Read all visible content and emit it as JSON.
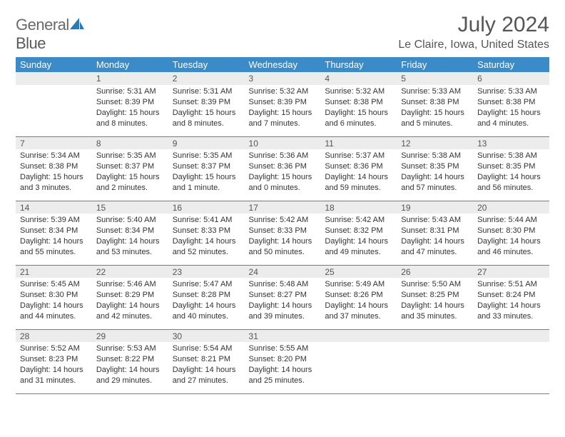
{
  "brand": {
    "text1": "General",
    "text2": "Blue"
  },
  "title": "July 2024",
  "location": "Le Claire, Iowa, United States",
  "colors": {
    "header_bg": "#3b8bc8",
    "header_text": "#ffffff",
    "daynum_bg": "#ececec",
    "border": "#3b8bc8",
    "text": "#333333",
    "title_text": "#555555"
  },
  "fonts": {
    "title_size": 30,
    "location_size": 16,
    "dayhdr_size": 13,
    "daynum_size": 12,
    "cell_size": 11
  },
  "day_headers": [
    "Sunday",
    "Monday",
    "Tuesday",
    "Wednesday",
    "Thursday",
    "Friday",
    "Saturday"
  ],
  "weeks": [
    {
      "nums": [
        "",
        "1",
        "2",
        "3",
        "4",
        "5",
        "6"
      ],
      "cells": [
        {
          "sunrise": "",
          "sunset": "",
          "daylight": ""
        },
        {
          "sunrise": "Sunrise: 5:31 AM",
          "sunset": "Sunset: 8:39 PM",
          "daylight": "Daylight: 15 hours and 8 minutes."
        },
        {
          "sunrise": "Sunrise: 5:31 AM",
          "sunset": "Sunset: 8:39 PM",
          "daylight": "Daylight: 15 hours and 8 minutes."
        },
        {
          "sunrise": "Sunrise: 5:32 AM",
          "sunset": "Sunset: 8:39 PM",
          "daylight": "Daylight: 15 hours and 7 minutes."
        },
        {
          "sunrise": "Sunrise: 5:32 AM",
          "sunset": "Sunset: 8:38 PM",
          "daylight": "Daylight: 15 hours and 6 minutes."
        },
        {
          "sunrise": "Sunrise: 5:33 AM",
          "sunset": "Sunset: 8:38 PM",
          "daylight": "Daylight: 15 hours and 5 minutes."
        },
        {
          "sunrise": "Sunrise: 5:33 AM",
          "sunset": "Sunset: 8:38 PM",
          "daylight": "Daylight: 15 hours and 4 minutes."
        }
      ]
    },
    {
      "nums": [
        "7",
        "8",
        "9",
        "10",
        "11",
        "12",
        "13"
      ],
      "cells": [
        {
          "sunrise": "Sunrise: 5:34 AM",
          "sunset": "Sunset: 8:38 PM",
          "daylight": "Daylight: 15 hours and 3 minutes."
        },
        {
          "sunrise": "Sunrise: 5:35 AM",
          "sunset": "Sunset: 8:37 PM",
          "daylight": "Daylight: 15 hours and 2 minutes."
        },
        {
          "sunrise": "Sunrise: 5:35 AM",
          "sunset": "Sunset: 8:37 PM",
          "daylight": "Daylight: 15 hours and 1 minute."
        },
        {
          "sunrise": "Sunrise: 5:36 AM",
          "sunset": "Sunset: 8:36 PM",
          "daylight": "Daylight: 15 hours and 0 minutes."
        },
        {
          "sunrise": "Sunrise: 5:37 AM",
          "sunset": "Sunset: 8:36 PM",
          "daylight": "Daylight: 14 hours and 59 minutes."
        },
        {
          "sunrise": "Sunrise: 5:38 AM",
          "sunset": "Sunset: 8:35 PM",
          "daylight": "Daylight: 14 hours and 57 minutes."
        },
        {
          "sunrise": "Sunrise: 5:38 AM",
          "sunset": "Sunset: 8:35 PM",
          "daylight": "Daylight: 14 hours and 56 minutes."
        }
      ]
    },
    {
      "nums": [
        "14",
        "15",
        "16",
        "17",
        "18",
        "19",
        "20"
      ],
      "cells": [
        {
          "sunrise": "Sunrise: 5:39 AM",
          "sunset": "Sunset: 8:34 PM",
          "daylight": "Daylight: 14 hours and 55 minutes."
        },
        {
          "sunrise": "Sunrise: 5:40 AM",
          "sunset": "Sunset: 8:34 PM",
          "daylight": "Daylight: 14 hours and 53 minutes."
        },
        {
          "sunrise": "Sunrise: 5:41 AM",
          "sunset": "Sunset: 8:33 PM",
          "daylight": "Daylight: 14 hours and 52 minutes."
        },
        {
          "sunrise": "Sunrise: 5:42 AM",
          "sunset": "Sunset: 8:33 PM",
          "daylight": "Daylight: 14 hours and 50 minutes."
        },
        {
          "sunrise": "Sunrise: 5:42 AM",
          "sunset": "Sunset: 8:32 PM",
          "daylight": "Daylight: 14 hours and 49 minutes."
        },
        {
          "sunrise": "Sunrise: 5:43 AM",
          "sunset": "Sunset: 8:31 PM",
          "daylight": "Daylight: 14 hours and 47 minutes."
        },
        {
          "sunrise": "Sunrise: 5:44 AM",
          "sunset": "Sunset: 8:30 PM",
          "daylight": "Daylight: 14 hours and 46 minutes."
        }
      ]
    },
    {
      "nums": [
        "21",
        "22",
        "23",
        "24",
        "25",
        "26",
        "27"
      ],
      "cells": [
        {
          "sunrise": "Sunrise: 5:45 AM",
          "sunset": "Sunset: 8:30 PM",
          "daylight": "Daylight: 14 hours and 44 minutes."
        },
        {
          "sunrise": "Sunrise: 5:46 AM",
          "sunset": "Sunset: 8:29 PM",
          "daylight": "Daylight: 14 hours and 42 minutes."
        },
        {
          "sunrise": "Sunrise: 5:47 AM",
          "sunset": "Sunset: 8:28 PM",
          "daylight": "Daylight: 14 hours and 40 minutes."
        },
        {
          "sunrise": "Sunrise: 5:48 AM",
          "sunset": "Sunset: 8:27 PM",
          "daylight": "Daylight: 14 hours and 39 minutes."
        },
        {
          "sunrise": "Sunrise: 5:49 AM",
          "sunset": "Sunset: 8:26 PM",
          "daylight": "Daylight: 14 hours and 37 minutes."
        },
        {
          "sunrise": "Sunrise: 5:50 AM",
          "sunset": "Sunset: 8:25 PM",
          "daylight": "Daylight: 14 hours and 35 minutes."
        },
        {
          "sunrise": "Sunrise: 5:51 AM",
          "sunset": "Sunset: 8:24 PM",
          "daylight": "Daylight: 14 hours and 33 minutes."
        }
      ]
    },
    {
      "nums": [
        "28",
        "29",
        "30",
        "31",
        "",
        "",
        ""
      ],
      "cells": [
        {
          "sunrise": "Sunrise: 5:52 AM",
          "sunset": "Sunset: 8:23 PM",
          "daylight": "Daylight: 14 hours and 31 minutes."
        },
        {
          "sunrise": "Sunrise: 5:53 AM",
          "sunset": "Sunset: 8:22 PM",
          "daylight": "Daylight: 14 hours and 29 minutes."
        },
        {
          "sunrise": "Sunrise: 5:54 AM",
          "sunset": "Sunset: 8:21 PM",
          "daylight": "Daylight: 14 hours and 27 minutes."
        },
        {
          "sunrise": "Sunrise: 5:55 AM",
          "sunset": "Sunset: 8:20 PM",
          "daylight": "Daylight: 14 hours and 25 minutes."
        },
        {
          "sunrise": "",
          "sunset": "",
          "daylight": ""
        },
        {
          "sunrise": "",
          "sunset": "",
          "daylight": ""
        },
        {
          "sunrise": "",
          "sunset": "",
          "daylight": ""
        }
      ]
    }
  ]
}
